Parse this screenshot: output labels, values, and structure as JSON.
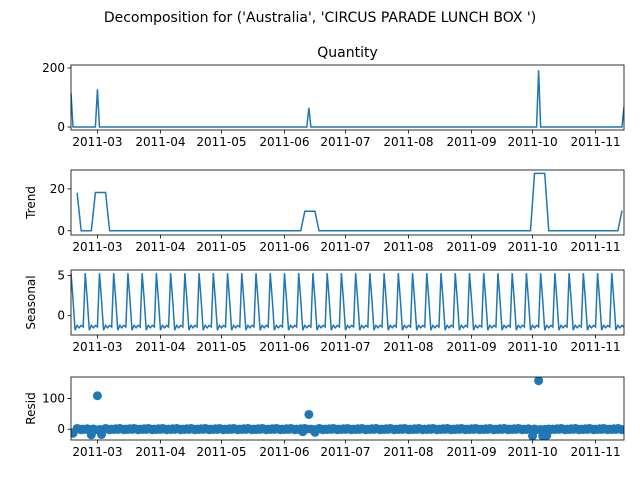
{
  "figure_title": "Decomposition for ('Australia', 'CIRCUS PARADE LUNCH BOX ')",
  "x_tick_labels": [
    "2011-03",
    "2011-04",
    "2011-05",
    "2011-06",
    "2011-07",
    "2011-08",
    "2011-09",
    "2011-10",
    "2011-11"
  ],
  "chart_data": [
    {
      "type": "line",
      "panel": "observed",
      "title": "Quantity",
      "ylabel": "",
      "xlim": [
        "2011-02-16",
        "2011-11-15"
      ],
      "ylim": [
        -10,
        210
      ],
      "yticks": [
        0,
        200
      ],
      "color": "#1f77b4",
      "x": [
        "2011-02-16",
        "2011-02-17",
        "2011-02-28",
        "2011-03-01",
        "2011-03-02",
        "2011-06-12",
        "2011-06-13",
        "2011-06-14",
        "2011-10-03",
        "2011-10-04",
        "2011-10-05",
        "2011-11-14",
        "2011-11-15"
      ],
      "y": [
        115,
        0,
        0,
        128,
        0,
        0,
        65,
        0,
        0,
        192,
        0,
        0,
        68
      ]
    },
    {
      "type": "line",
      "panel": "trend",
      "title": "",
      "ylabel": "Trend",
      "xlim": [
        "2011-02-16",
        "2011-11-15"
      ],
      "ylim": [
        -2,
        29
      ],
      "yticks": [
        0,
        20
      ],
      "color": "#1f77b4",
      "x": [
        "2011-02-19",
        "2011-02-21",
        "2011-02-26",
        "2011-02-28",
        "2011-03-05",
        "2011-03-07",
        "2011-06-09",
        "2011-06-11",
        "2011-06-16",
        "2011-06-18",
        "2011-09-30",
        "2011-10-02",
        "2011-10-07",
        "2011-10-09",
        "2011-11-12",
        "2011-11-14"
      ],
      "y": [
        18.2,
        0,
        0,
        18.3,
        18.3,
        0,
        0,
        9.3,
        9.3,
        0,
        0,
        27.4,
        27.4,
        0,
        0,
        9.7
      ]
    },
    {
      "type": "line",
      "panel": "seasonal",
      "title": "",
      "ylabel": "Seasonal",
      "xlim": [
        "2011-02-16",
        "2011-11-15"
      ],
      "ylim": [
        -2.4,
        5.7
      ],
      "yticks": [
        0,
        5
      ],
      "color": "#1f77b4",
      "start": "2011-02-16",
      "period_days": 7,
      "pattern": [
        5.3,
        2.0,
        -1.8,
        -1.2,
        -1.5,
        -1.2,
        -1.4
      ]
    },
    {
      "type": "scatter",
      "panel": "resid",
      "title": "",
      "ylabel": "Resid",
      "xlim": [
        "2011-02-16",
        "2011-11-15"
      ],
      "ylim": [
        -35,
        170
      ],
      "yticks": [
        0,
        100
      ],
      "color": "#1f77b4",
      "baseline": 0,
      "outliers": [
        {
          "x": "2011-02-17",
          "y": -13
        },
        {
          "x": "2011-02-26",
          "y": -18
        },
        {
          "x": "2011-03-01",
          "y": 109
        },
        {
          "x": "2011-03-03",
          "y": -17
        },
        {
          "x": "2011-06-13",
          "y": 48
        },
        {
          "x": "2011-06-10",
          "y": -8
        },
        {
          "x": "2011-06-16",
          "y": -10
        },
        {
          "x": "2011-10-01",
          "y": -22
        },
        {
          "x": "2011-10-04",
          "y": 158
        },
        {
          "x": "2011-10-06",
          "y": -22
        },
        {
          "x": "2011-10-08",
          "y": -20
        }
      ],
      "regular_range": [
        "2011-02-19",
        "2011-11-14"
      ],
      "regular_values": [
        2.5,
        1.0,
        -1.5,
        0.5,
        -0.8,
        1.8,
        -0.5
      ]
    }
  ]
}
